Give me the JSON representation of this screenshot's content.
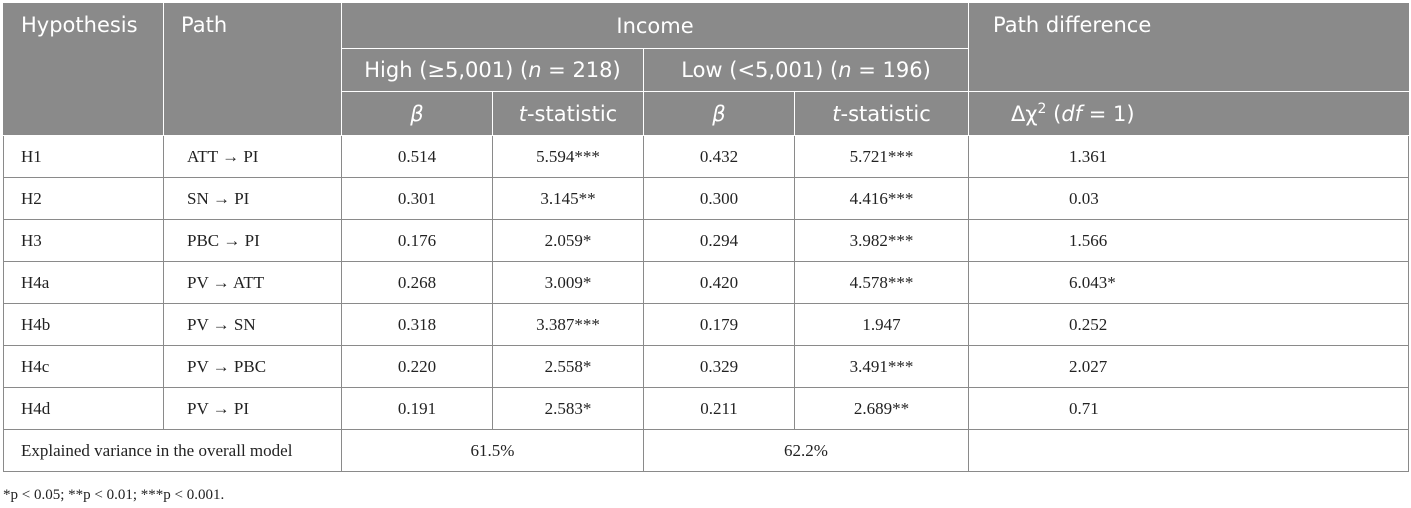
{
  "header": {
    "hypothesis": "Hypothesis",
    "path": "Path",
    "income": "Income",
    "path_difference": "Path difference",
    "high_prefix": "High (≥5,001) (",
    "high_n": "n",
    "high_suffix": " = 218)",
    "low_prefix": "Low (<5,001) (",
    "low_n": "n",
    "low_suffix": " = 196)",
    "beta": "β",
    "t_italic": "t",
    "t_rest": "-statistic",
    "delta_chi": "Δχ",
    "delta_sup": "2",
    "df_open": " (",
    "df_italic": "df",
    "df_close": " = 1)"
  },
  "rows": [
    {
      "hyp": "H1",
      "path": "ATT → PI",
      "high_beta": "0.514",
      "high_t": "5.594***",
      "low_beta": "0.432",
      "low_t": "5.721***",
      "diff": "1.361"
    },
    {
      "hyp": "H2",
      "path": "SN → PI",
      "high_beta": "0.301",
      "high_t": "3.145**",
      "low_beta": "0.300",
      "low_t": "4.416***",
      "diff": "0.03"
    },
    {
      "hyp": "H3",
      "path": "PBC → PI",
      "high_beta": "0.176",
      "high_t": "2.059*",
      "low_beta": "0.294",
      "low_t": "3.982***",
      "diff": "1.566"
    },
    {
      "hyp": "H4a",
      "path": "PV → ATT",
      "high_beta": "0.268",
      "high_t": "3.009*",
      "low_beta": "0.420",
      "low_t": "4.578***",
      "diff": "6.043*"
    },
    {
      "hyp": "H4b",
      "path": "PV → SN",
      "high_beta": "0.318",
      "high_t": "3.387***",
      "low_beta": "0.179",
      "low_t": "1.947",
      "diff": "0.252"
    },
    {
      "hyp": "H4c",
      "path": "PV → PBC",
      "high_beta": "0.220",
      "high_t": "2.558*",
      "low_beta": "0.329",
      "low_t": "3.491***",
      "diff": "2.027"
    },
    {
      "hyp": "H4d",
      "path": "PV → PI",
      "high_beta": "0.191",
      "high_t": "2.583*",
      "low_beta": "0.211",
      "low_t": "2.689**",
      "diff": "0.71"
    }
  ],
  "explained": {
    "label": "Explained variance in the overall model",
    "high": "61.5%",
    "low": "62.2%"
  },
  "footnote": "*p < 0.05; **p < 0.01; ***p < 0.001."
}
